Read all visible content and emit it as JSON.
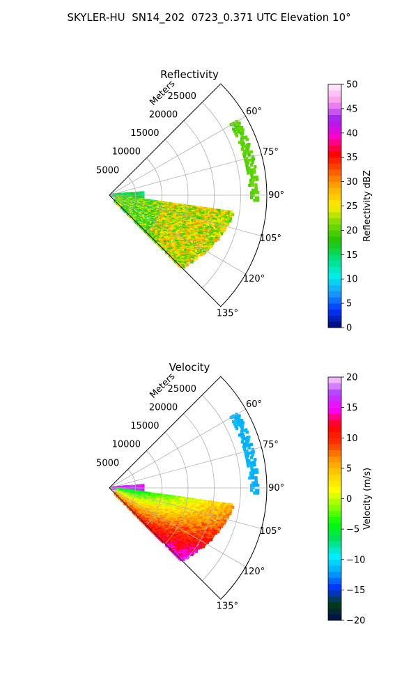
{
  "figure": {
    "title": "SKYLER-HU  SN14_202  0723_0.371 UTC Elevation 10°"
  },
  "chart_data": [
    {
      "type": "polar-sector",
      "title": "Reflectivity",
      "radial_label": "Meters",
      "radial_ticks": [
        "5000",
        "10000",
        "15000",
        "20000",
        "25000"
      ],
      "radial_tick_values": [
        5000,
        10000,
        15000,
        20000,
        25000
      ],
      "rlim": [
        0,
        30000
      ],
      "angle_ticks": [
        "60°",
        "75°",
        "90°",
        "105°",
        "120°",
        "135°"
      ],
      "angle_tick_values": [
        60,
        75,
        90,
        105,
        120,
        135
      ],
      "theta_range_deg": [
        45,
        135
      ],
      "grid": true,
      "colorbar": {
        "label": "Reflectivity dBZ",
        "range": [
          0,
          50
        ],
        "ticks": [
          "0",
          "5",
          "10",
          "15",
          "20",
          "25",
          "30",
          "35",
          "40",
          "45",
          "50"
        ]
      }
    },
    {
      "type": "polar-sector",
      "title": "Velocity",
      "radial_label": "Meters",
      "radial_ticks": [
        "5000",
        "10000",
        "15000",
        "20000",
        "25000"
      ],
      "radial_tick_values": [
        5000,
        10000,
        15000,
        20000,
        25000
      ],
      "rlim": [
        0,
        30000
      ],
      "angle_ticks": [
        "60°",
        "75°",
        "90°",
        "105°",
        "120°",
        "135°"
      ],
      "angle_tick_values": [
        60,
        75,
        90,
        105,
        120,
        135
      ],
      "theta_range_deg": [
        45,
        135
      ],
      "grid": true,
      "colorbar": {
        "label": "Velocity (m/s)",
        "range": [
          -20,
          20
        ],
        "ticks": [
          "−20",
          "−15",
          "−10",
          "−5",
          "0",
          "5",
          "10",
          "15",
          "20"
        ]
      }
    }
  ],
  "colors": {
    "grid": "#b0b0b0",
    "frame": "#000000",
    "reflectivity_stops": [
      "#000a6b",
      "#0033ff",
      "#1a9cff",
      "#00f0e6",
      "#00e07a",
      "#22c400",
      "#7adc00",
      "#ffee00",
      "#ffb000",
      "#ff5a00",
      "#ff0000",
      "#ff00cc",
      "#a020f0",
      "#ff99ee",
      "#fff0ff"
    ],
    "velocity_stops": [
      "#000a50",
      "#003d1a",
      "#0033ff",
      "#00a8ff",
      "#00f0ff",
      "#00e060",
      "#00ff00",
      "#8aff00",
      "#ffff00",
      "#ffd000",
      "#ff9000",
      "#ff3000",
      "#ff0000",
      "#ff00ff",
      "#b040ff",
      "#ffd0ff"
    ]
  }
}
